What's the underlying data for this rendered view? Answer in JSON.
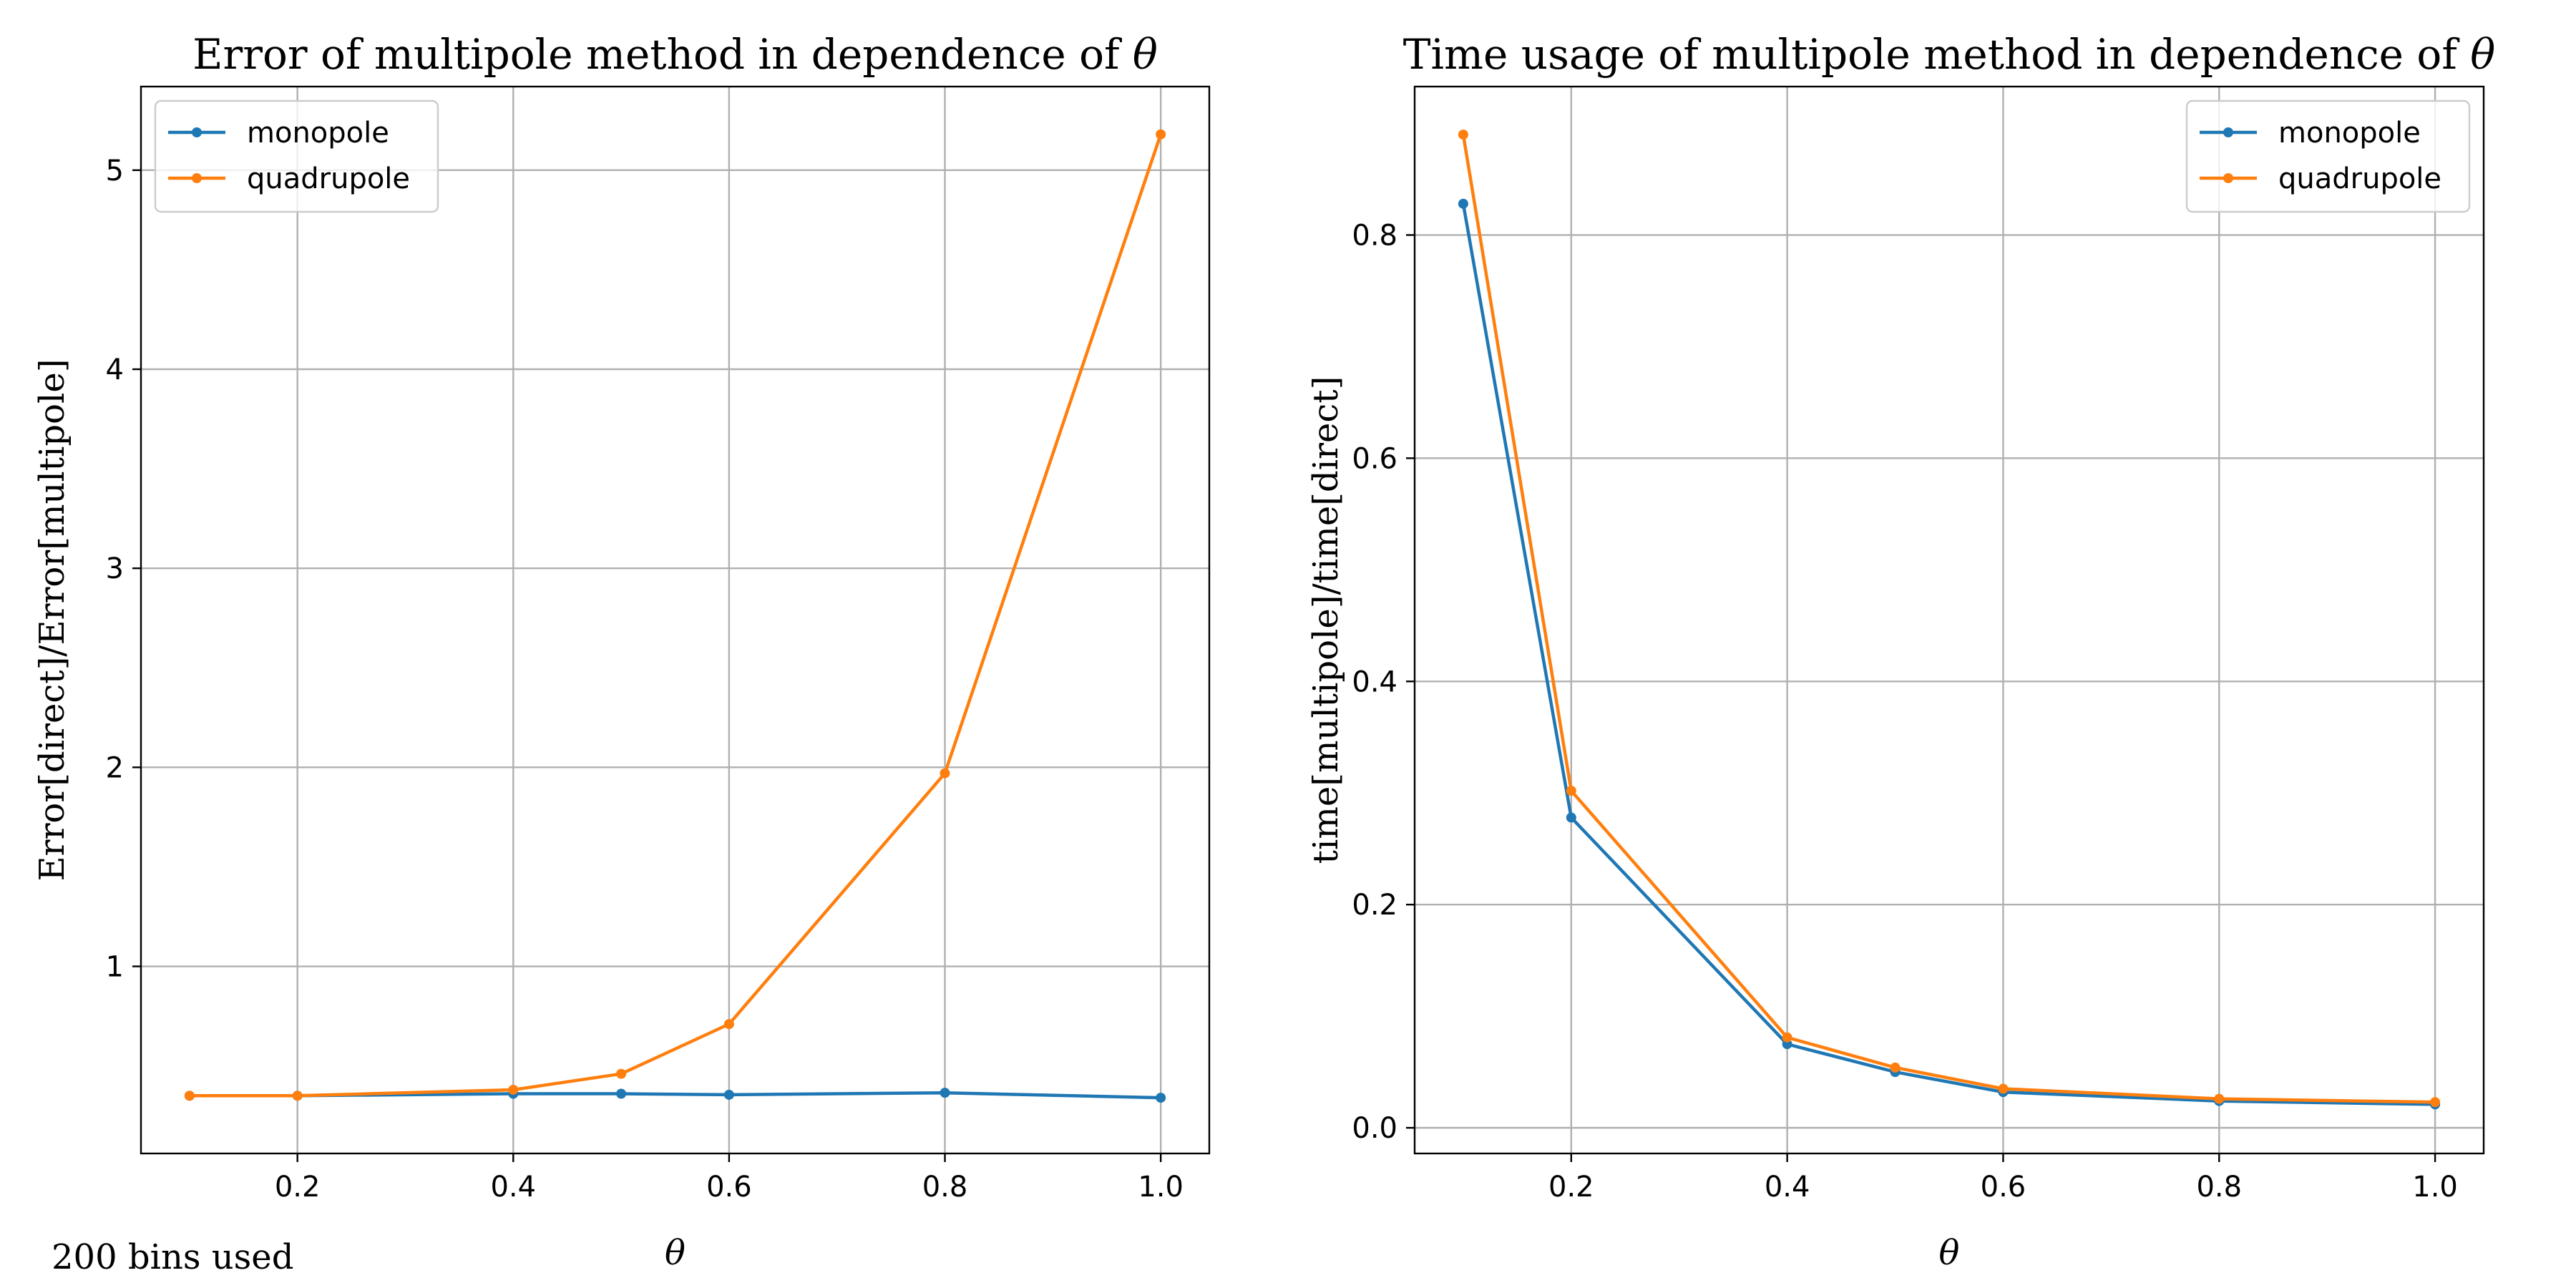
{
  "figure_note": "200 bins used",
  "colors": {
    "monopole": "#1f77b4",
    "quadrupole": "#ff7f0e"
  },
  "chart_data": [
    {
      "type": "line",
      "title_prefix": "Error of multipole method in dependence of ",
      "title_symbol": "θ",
      "xlabel": "θ",
      "ylabel": "Error[direct]/Error[multipole]",
      "xlim": [
        0.055,
        1.045
      ],
      "ylim": [
        0.06,
        5.42
      ],
      "xticks": [
        0.2,
        0.4,
        0.6,
        0.8,
        1.0
      ],
      "xtick_labels": [
        "0.2",
        "0.4",
        "0.6",
        "0.8",
        "1.0"
      ],
      "yticks": [
        1,
        2,
        3,
        4,
        5
      ],
      "ytick_labels": [
        "1",
        "2",
        "3",
        "4",
        "5"
      ],
      "grid": true,
      "legend_position": "upper left",
      "series": [
        {
          "name": "monopole",
          "x": [
            0.1,
            0.2,
            0.4,
            0.5,
            0.6,
            0.8,
            1.0
          ],
          "y": [
            0.35,
            0.35,
            0.36,
            0.36,
            0.355,
            0.365,
            0.34
          ]
        },
        {
          "name": "quadrupole",
          "x": [
            0.1,
            0.2,
            0.4,
            0.5,
            0.6,
            0.8,
            1.0
          ],
          "y": [
            0.35,
            0.35,
            0.38,
            0.46,
            0.71,
            1.97,
            5.18
          ]
        }
      ]
    },
    {
      "type": "line",
      "title_prefix": "Time usage of multipole method in dependence of ",
      "title_symbol": "θ",
      "xlabel": "θ",
      "ylabel": "time[multipole]/time[direct]",
      "xlim": [
        0.055,
        1.045
      ],
      "ylim": [
        -0.023,
        0.933
      ],
      "xticks": [
        0.2,
        0.4,
        0.6,
        0.8,
        1.0
      ],
      "xtick_labels": [
        "0.2",
        "0.4",
        "0.6",
        "0.8",
        "1.0"
      ],
      "yticks": [
        0.0,
        0.2,
        0.4,
        0.6,
        0.8
      ],
      "ytick_labels": [
        "0.0",
        "0.2",
        "0.4",
        "0.6",
        "0.8"
      ],
      "grid": true,
      "legend_position": "upper right",
      "series": [
        {
          "name": "monopole",
          "x": [
            0.1,
            0.2,
            0.4,
            0.5,
            0.6,
            0.8,
            1.0
          ],
          "y": [
            0.828,
            0.278,
            0.075,
            0.05,
            0.032,
            0.024,
            0.021
          ]
        },
        {
          "name": "quadrupole",
          "x": [
            0.1,
            0.2,
            0.4,
            0.5,
            0.6,
            0.8,
            1.0
          ],
          "y": [
            0.89,
            0.302,
            0.081,
            0.054,
            0.035,
            0.026,
            0.023
          ]
        }
      ]
    }
  ]
}
